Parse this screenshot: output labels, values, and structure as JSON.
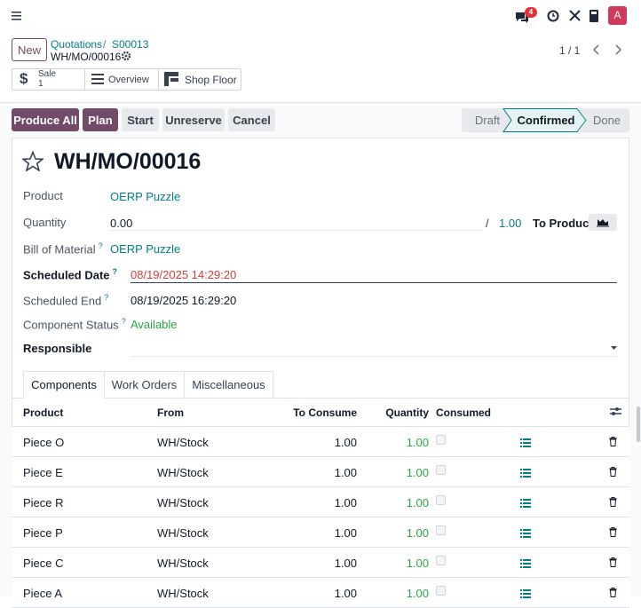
{
  "navbar": {
    "notification_count": "4",
    "avatar": "A"
  },
  "breadcrumb": {
    "new_button": "New",
    "items": [
      "Quotations",
      "S00013"
    ],
    "separator": "/",
    "current": "WH/MO/00016"
  },
  "pager": "1 / 1",
  "smart_buttons": {
    "sale": {
      "label": "Sale",
      "count": "1"
    },
    "overview": "Overview",
    "shop_floor": "Shop Floor"
  },
  "actions": [
    "Produce All",
    "Plan",
    "Start",
    "Unreserve",
    "Cancel"
  ],
  "statusbar": [
    "Draft",
    "Confirmed",
    "Done"
  ],
  "form": {
    "title": "WH/MO/00016",
    "fields": {
      "product": {
        "label": "Product",
        "value": "OERP Puzzle"
      },
      "quantity": {
        "label": "Quantity",
        "value": "0.00",
        "separator": "/",
        "target": "1.00",
        "unit": "To Produce"
      },
      "bom": {
        "label": "Bill of Material",
        "help": "?",
        "value": "OERP Puzzle"
      },
      "scheduled_date": {
        "label": "Scheduled Date",
        "help": "?",
        "value": "08/19/2025 14:29:20"
      },
      "scheduled_end": {
        "label": "Scheduled End",
        "help": "?",
        "value": "08/19/2025 16:29:20"
      },
      "component_status": {
        "label": "Component Status",
        "help": "?",
        "value": "Available"
      },
      "responsible": {
        "label": "Responsible"
      }
    },
    "tabs": [
      "Components",
      "Work Orders",
      "Miscellaneous"
    ]
  },
  "table": {
    "columns": [
      "Product",
      "From",
      "To Consume",
      "Quantity",
      "Consumed"
    ],
    "rows": [
      [
        "Piece O",
        "WH/Stock",
        "1.00",
        "1.00"
      ],
      [
        "Piece E",
        "WH/Stock",
        "1.00",
        "1.00"
      ],
      [
        "Piece R",
        "WH/Stock",
        "1.00",
        "1.00"
      ],
      [
        "Piece P",
        "WH/Stock",
        "1.00",
        "1.00"
      ],
      [
        "Piece C",
        "WH/Stock",
        "1.00",
        "1.00"
      ],
      [
        "Piece A",
        "WH/Stock",
        "1.00",
        "1.00"
      ]
    ]
  }
}
